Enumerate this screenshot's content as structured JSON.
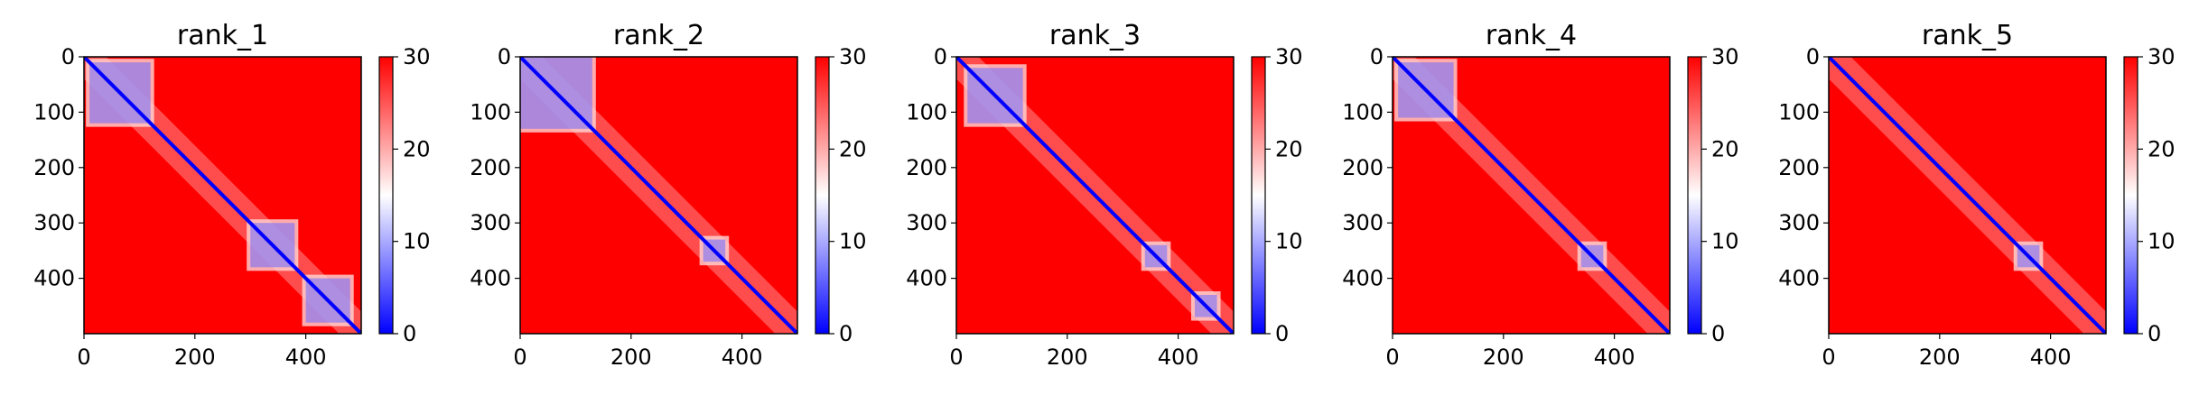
{
  "chart_data": [
    {
      "type": "heatmap",
      "title": "rank_1",
      "x_ticks": [
        0,
        200,
        400
      ],
      "y_ticks": [
        0,
        100,
        200,
        300,
        400
      ],
      "xlim": [
        0,
        500
      ],
      "ylim": [
        500,
        0
      ],
      "colorbar": {
        "ticks": [
          0,
          10,
          20,
          30
        ],
        "range": [
          0,
          30
        ],
        "colors": [
          "#0000ff",
          "#ffffff",
          "#ff0000"
        ]
      },
      "diagonal_line": true,
      "low_value_blocks": [
        {
          "from": 10,
          "to": 120
        },
        {
          "from": 300,
          "to": 380
        },
        {
          "from": 400,
          "to": 480
        }
      ]
    },
    {
      "type": "heatmap",
      "title": "rank_2",
      "x_ticks": [
        0,
        200,
        400
      ],
      "y_ticks": [
        0,
        100,
        200,
        300,
        400
      ],
      "xlim": [
        0,
        500
      ],
      "ylim": [
        500,
        0
      ],
      "colorbar": {
        "ticks": [
          0,
          10,
          20,
          30
        ],
        "range": [
          0,
          30
        ],
        "colors": [
          "#0000ff",
          "#ffffff",
          "#ff0000"
        ]
      },
      "diagonal_line": true,
      "low_value_blocks": [
        {
          "from": 0,
          "to": 130
        },
        {
          "from": 330,
          "to": 370
        }
      ]
    },
    {
      "type": "heatmap",
      "title": "rank_3",
      "x_ticks": [
        0,
        200,
        400
      ],
      "y_ticks": [
        0,
        100,
        200,
        300,
        400
      ],
      "xlim": [
        0,
        500
      ],
      "ylim": [
        500,
        0
      ],
      "colorbar": {
        "ticks": [
          0,
          10,
          20,
          30
        ],
        "range": [
          0,
          30
        ],
        "colors": [
          "#0000ff",
          "#ffffff",
          "#ff0000"
        ]
      },
      "diagonal_line": true,
      "low_value_blocks": [
        {
          "from": 20,
          "to": 120
        },
        {
          "from": 340,
          "to": 380
        },
        {
          "from": 430,
          "to": 470
        }
      ]
    },
    {
      "type": "heatmap",
      "title": "rank_4",
      "x_ticks": [
        0,
        200,
        400
      ],
      "y_ticks": [
        0,
        100,
        200,
        300,
        400
      ],
      "xlim": [
        0,
        500
      ],
      "ylim": [
        500,
        0
      ],
      "colorbar": {
        "ticks": [
          0,
          10,
          20,
          30
        ],
        "range": [
          0,
          30
        ],
        "colors": [
          "#0000ff",
          "#ffffff",
          "#ff0000"
        ]
      },
      "diagonal_line": true,
      "low_value_blocks": [
        {
          "from": 10,
          "to": 110
        },
        {
          "from": 340,
          "to": 380
        }
      ]
    },
    {
      "type": "heatmap",
      "title": "rank_5",
      "x_ticks": [
        0,
        200,
        400
      ],
      "y_ticks": [
        0,
        100,
        200,
        300,
        400
      ],
      "xlim": [
        0,
        500
      ],
      "ylim": [
        500,
        0
      ],
      "colorbar": {
        "ticks": [
          0,
          10,
          20,
          30
        ],
        "range": [
          0,
          30
        ],
        "colors": [
          "#0000ff",
          "#ffffff",
          "#ff0000"
        ]
      },
      "diagonal_line": true,
      "low_value_blocks": [
        {
          "from": 340,
          "to": 380
        }
      ]
    }
  ]
}
